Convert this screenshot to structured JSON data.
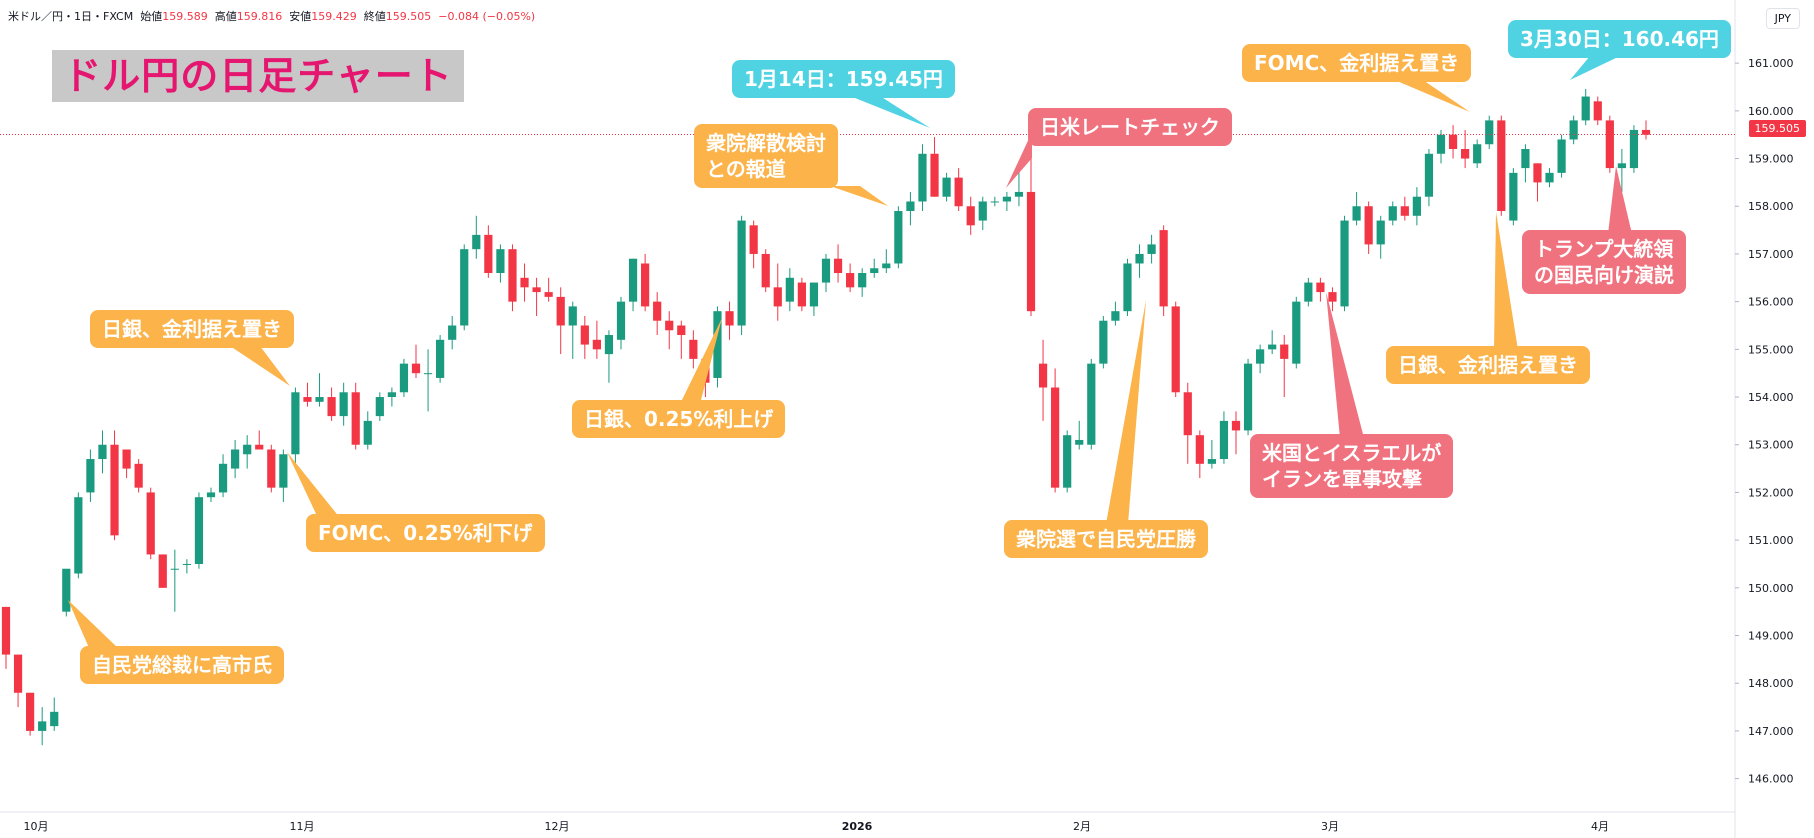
{
  "header": {
    "symbol": "米ドル／円・1日・FXCM",
    "open_label": "始値",
    "open": "159.589",
    "high_label": "高値",
    "high": "159.816",
    "low_label": "安値",
    "low": "159.429",
    "close_label": "終値",
    "close": "159.505",
    "change": "−0.084 (−0.05%)"
  },
  "currency_button": "JPY",
  "title": "ドル円の日足チャート",
  "last_price": "159.505",
  "colors": {
    "up": "#1a9a7e",
    "down": "#f23645",
    "orange": "#fbb34a",
    "red": "#f1727f",
    "cyan": "#4fd2e2",
    "title": "#e5166f"
  },
  "annotations": [
    {
      "id": "a1",
      "text": "自民党総裁に高市氏",
      "style": "orange"
    },
    {
      "id": "a2",
      "text": "日銀、金利据え置き",
      "style": "orange"
    },
    {
      "id": "a3",
      "text": "FOMC、0.25%利下げ",
      "style": "orange"
    },
    {
      "id": "a4",
      "text": "日銀、0.25%利上げ",
      "style": "orange"
    },
    {
      "id": "a5",
      "text": "衆院解散検討\nとの報道",
      "style": "orange"
    },
    {
      "id": "a6",
      "text": "1月14日：159.45円",
      "style": "cyan"
    },
    {
      "id": "a7",
      "text": "日米レートチェック",
      "style": "red"
    },
    {
      "id": "a8",
      "text": "衆院選で自民党圧勝",
      "style": "orange"
    },
    {
      "id": "a9",
      "text": "米国とイスラエルが\nイランを軍事攻撃",
      "style": "red"
    },
    {
      "id": "a10",
      "text": "FOMC、金利据え置き",
      "style": "orange"
    },
    {
      "id": "a11",
      "text": "3月30日：160.46円",
      "style": "cyan"
    },
    {
      "id": "a12",
      "text": "日銀、金利据え置き",
      "style": "orange"
    },
    {
      "id": "a13",
      "text": "トランプ大統領\nの国民向け演説",
      "style": "red"
    }
  ],
  "chart_data": {
    "type": "candlestick",
    "x_tick_labels": [
      "10月",
      "11月",
      "12月",
      "2026",
      "2月",
      "3月",
      "4月"
    ],
    "y_tick_labels": [
      "146.000",
      "147.000",
      "148.000",
      "149.000",
      "150.000",
      "151.000",
      "152.000",
      "153.000",
      "154.000",
      "155.000",
      "156.000",
      "157.000",
      "158.000",
      "159.000",
      "160.000",
      "161.000"
    ],
    "ylim": [
      145.3,
      161.8
    ],
    "current_price": 159.505,
    "candles": [
      {
        "o": 149.6,
        "h": 149.6,
        "l": 148.3,
        "c": 148.6
      },
      {
        "o": 148.6,
        "h": 148.6,
        "l": 147.5,
        "c": 147.8
      },
      {
        "o": 147.8,
        "h": 147.8,
        "l": 146.9,
        "c": 147.0
      },
      {
        "o": 147.0,
        "h": 147.5,
        "l": 146.7,
        "c": 147.2
      },
      {
        "o": 147.1,
        "h": 147.7,
        "l": 147.0,
        "c": 147.4
      },
      {
        "o": 149.5,
        "h": 150.3,
        "l": 149.4,
        "c": 150.4
      },
      {
        "o": 150.3,
        "h": 152.0,
        "l": 150.2,
        "c": 151.9
      },
      {
        "o": 152.0,
        "h": 152.9,
        "l": 151.8,
        "c": 152.7
      },
      {
        "o": 152.7,
        "h": 153.3,
        "l": 152.4,
        "c": 153.0
      },
      {
        "o": 153.0,
        "h": 153.3,
        "l": 151.0,
        "c": 151.1
      },
      {
        "o": 152.9,
        "h": 152.9,
        "l": 152.3,
        "c": 152.5
      },
      {
        "o": 152.6,
        "h": 152.7,
        "l": 152.0,
        "c": 152.1
      },
      {
        "o": 152.0,
        "h": 152.1,
        "l": 150.6,
        "c": 150.7
      },
      {
        "o": 150.7,
        "h": 150.7,
        "l": 150.0,
        "c": 150.0
      },
      {
        "o": 150.4,
        "h": 150.8,
        "l": 149.5,
        "c": 150.4
      },
      {
        "o": 150.5,
        "h": 150.6,
        "l": 150.3,
        "c": 150.5
      },
      {
        "o": 150.5,
        "h": 152.0,
        "l": 150.4,
        "c": 151.9
      },
      {
        "o": 151.9,
        "h": 152.1,
        "l": 151.8,
        "c": 152.0
      },
      {
        "o": 152.0,
        "h": 152.8,
        "l": 151.9,
        "c": 152.6
      },
      {
        "o": 152.5,
        "h": 153.1,
        "l": 152.3,
        "c": 152.9
      },
      {
        "o": 152.8,
        "h": 153.2,
        "l": 152.5,
        "c": 153.0
      },
      {
        "o": 153.0,
        "h": 153.3,
        "l": 152.9,
        "c": 152.9
      },
      {
        "o": 152.9,
        "h": 153.0,
        "l": 152.0,
        "c": 152.1
      },
      {
        "o": 152.1,
        "h": 152.9,
        "l": 151.8,
        "c": 152.8
      },
      {
        "o": 152.8,
        "h": 154.2,
        "l": 152.6,
        "c": 154.1
      },
      {
        "o": 154.0,
        "h": 154.3,
        "l": 153.8,
        "c": 153.9
      },
      {
        "o": 153.9,
        "h": 154.5,
        "l": 153.8,
        "c": 154.0
      },
      {
        "o": 154.0,
        "h": 154.2,
        "l": 153.5,
        "c": 153.6
      },
      {
        "o": 153.6,
        "h": 154.3,
        "l": 153.4,
        "c": 154.1
      },
      {
        "o": 154.1,
        "h": 154.3,
        "l": 152.9,
        "c": 153.0
      },
      {
        "o": 153.0,
        "h": 153.7,
        "l": 152.9,
        "c": 153.5
      },
      {
        "o": 153.6,
        "h": 154.1,
        "l": 153.5,
        "c": 154.0
      },
      {
        "o": 154.0,
        "h": 154.2,
        "l": 153.8,
        "c": 154.1
      },
      {
        "o": 154.1,
        "h": 154.8,
        "l": 154.0,
        "c": 154.7
      },
      {
        "o": 154.7,
        "h": 155.1,
        "l": 154.4,
        "c": 154.5
      },
      {
        "o": 154.5,
        "h": 155.0,
        "l": 153.7,
        "c": 154.5
      },
      {
        "o": 154.4,
        "h": 155.3,
        "l": 154.3,
        "c": 155.2
      },
      {
        "o": 155.2,
        "h": 155.7,
        "l": 155.0,
        "c": 155.5
      },
      {
        "o": 155.5,
        "h": 157.2,
        "l": 155.4,
        "c": 157.1
      },
      {
        "o": 157.1,
        "h": 157.8,
        "l": 156.9,
        "c": 157.4
      },
      {
        "o": 157.4,
        "h": 157.6,
        "l": 156.5,
        "c": 156.6
      },
      {
        "o": 156.6,
        "h": 157.2,
        "l": 156.4,
        "c": 157.1
      },
      {
        "o": 157.1,
        "h": 157.2,
        "l": 155.8,
        "c": 156.0
      },
      {
        "o": 156.5,
        "h": 156.8,
        "l": 156.0,
        "c": 156.3
      },
      {
        "o": 156.3,
        "h": 156.5,
        "l": 155.7,
        "c": 156.2
      },
      {
        "o": 156.2,
        "h": 156.5,
        "l": 156.0,
        "c": 156.1
      },
      {
        "o": 156.1,
        "h": 156.3,
        "l": 154.9,
        "c": 155.5
      },
      {
        "o": 155.5,
        "h": 156.0,
        "l": 154.8,
        "c": 155.9
      },
      {
        "o": 155.5,
        "h": 155.7,
        "l": 154.8,
        "c": 155.1
      },
      {
        "o": 155.2,
        "h": 155.6,
        "l": 154.8,
        "c": 155.0
      },
      {
        "o": 154.9,
        "h": 155.4,
        "l": 154.3,
        "c": 155.3
      },
      {
        "o": 155.2,
        "h": 156.1,
        "l": 155.0,
        "c": 156.0
      },
      {
        "o": 156.0,
        "h": 156.9,
        "l": 155.8,
        "c": 156.9
      },
      {
        "o": 156.8,
        "h": 157.0,
        "l": 155.8,
        "c": 155.9
      },
      {
        "o": 156.0,
        "h": 156.2,
        "l": 155.3,
        "c": 155.6
      },
      {
        "o": 155.6,
        "h": 155.8,
        "l": 155.0,
        "c": 155.4
      },
      {
        "o": 155.5,
        "h": 155.6,
        "l": 154.8,
        "c": 155.3
      },
      {
        "o": 155.2,
        "h": 155.4,
        "l": 154.6,
        "c": 154.8
      },
      {
        "o": 154.8,
        "h": 154.9,
        "l": 154.0,
        "c": 154.3
      },
      {
        "o": 154.4,
        "h": 155.9,
        "l": 154.2,
        "c": 155.8
      },
      {
        "o": 155.8,
        "h": 156.0,
        "l": 155.2,
        "c": 155.5
      },
      {
        "o": 155.5,
        "h": 157.8,
        "l": 155.3,
        "c": 157.7
      },
      {
        "o": 157.6,
        "h": 157.7,
        "l": 156.7,
        "c": 157.0
      },
      {
        "o": 157.0,
        "h": 157.1,
        "l": 156.2,
        "c": 156.3
      },
      {
        "o": 156.3,
        "h": 156.8,
        "l": 155.6,
        "c": 155.9
      },
      {
        "o": 156.0,
        "h": 156.7,
        "l": 155.8,
        "c": 156.5
      },
      {
        "o": 156.4,
        "h": 156.5,
        "l": 155.8,
        "c": 155.9
      },
      {
        "o": 155.9,
        "h": 156.4,
        "l": 155.7,
        "c": 156.4
      },
      {
        "o": 156.4,
        "h": 157.0,
        "l": 156.2,
        "c": 156.9
      },
      {
        "o": 156.9,
        "h": 157.2,
        "l": 156.4,
        "c": 156.6
      },
      {
        "o": 156.6,
        "h": 156.8,
        "l": 156.2,
        "c": 156.3
      },
      {
        "o": 156.3,
        "h": 156.7,
        "l": 156.1,
        "c": 156.6
      },
      {
        "o": 156.6,
        "h": 156.9,
        "l": 156.5,
        "c": 156.7
      },
      {
        "o": 156.7,
        "h": 157.1,
        "l": 156.6,
        "c": 156.8
      },
      {
        "o": 156.8,
        "h": 158.0,
        "l": 156.7,
        "c": 157.9
      },
      {
        "o": 157.9,
        "h": 158.3,
        "l": 157.6,
        "c": 158.1
      },
      {
        "o": 158.1,
        "h": 159.3,
        "l": 157.9,
        "c": 159.1
      },
      {
        "o": 159.1,
        "h": 159.45,
        "l": 158.2,
        "c": 158.2
      },
      {
        "o": 158.2,
        "h": 158.7,
        "l": 158.1,
        "c": 158.6
      },
      {
        "o": 158.6,
        "h": 158.8,
        "l": 157.9,
        "c": 158.0
      },
      {
        "o": 158.0,
        "h": 158.2,
        "l": 157.4,
        "c": 157.6
      },
      {
        "o": 157.7,
        "h": 158.2,
        "l": 157.5,
        "c": 158.1
      },
      {
        "o": 158.1,
        "h": 158.2,
        "l": 158.0,
        "c": 158.1
      },
      {
        "o": 158.1,
        "h": 158.3,
        "l": 157.9,
        "c": 158.2
      },
      {
        "o": 158.2,
        "h": 158.9,
        "l": 158.0,
        "c": 158.3
      },
      {
        "o": 158.3,
        "h": 159.3,
        "l": 155.7,
        "c": 155.8
      },
      {
        "o": 154.7,
        "h": 155.2,
        "l": 153.5,
        "c": 154.2
      },
      {
        "o": 154.2,
        "h": 154.6,
        "l": 152.0,
        "c": 152.1
      },
      {
        "o": 152.1,
        "h": 153.3,
        "l": 152.0,
        "c": 153.2
      },
      {
        "o": 153.0,
        "h": 153.5,
        "l": 152.9,
        "c": 153.1
      },
      {
        "o": 153.0,
        "h": 154.8,
        "l": 152.9,
        "c": 154.7
      },
      {
        "o": 154.7,
        "h": 155.7,
        "l": 154.6,
        "c": 155.6
      },
      {
        "o": 155.6,
        "h": 156.0,
        "l": 155.5,
        "c": 155.8
      },
      {
        "o": 155.8,
        "h": 156.9,
        "l": 155.7,
        "c": 156.8
      },
      {
        "o": 156.8,
        "h": 157.2,
        "l": 156.5,
        "c": 157.0
      },
      {
        "o": 157.0,
        "h": 157.4,
        "l": 156.8,
        "c": 157.2
      },
      {
        "o": 157.5,
        "h": 157.6,
        "l": 155.7,
        "c": 155.9
      },
      {
        "o": 155.9,
        "h": 156.0,
        "l": 154.0,
        "c": 154.1
      },
      {
        "o": 154.1,
        "h": 154.3,
        "l": 152.6,
        "c": 153.2
      },
      {
        "o": 153.2,
        "h": 153.3,
        "l": 152.3,
        "c": 152.6
      },
      {
        "o": 152.6,
        "h": 153.1,
        "l": 152.5,
        "c": 152.7
      },
      {
        "o": 152.7,
        "h": 153.7,
        "l": 152.6,
        "c": 153.5
      },
      {
        "o": 153.5,
        "h": 153.7,
        "l": 152.8,
        "c": 153.3
      },
      {
        "o": 153.3,
        "h": 154.8,
        "l": 153.2,
        "c": 154.7
      },
      {
        "o": 154.7,
        "h": 155.1,
        "l": 154.5,
        "c": 155.0
      },
      {
        "o": 155.0,
        "h": 155.4,
        "l": 154.9,
        "c": 155.1
      },
      {
        "o": 155.1,
        "h": 155.3,
        "l": 154.0,
        "c": 154.8
      },
      {
        "o": 154.7,
        "h": 156.1,
        "l": 154.6,
        "c": 156.0
      },
      {
        "o": 156.0,
        "h": 156.5,
        "l": 155.9,
        "c": 156.4
      },
      {
        "o": 156.4,
        "h": 156.5,
        "l": 156.0,
        "c": 156.2
      },
      {
        "o": 156.2,
        "h": 156.3,
        "l": 155.8,
        "c": 156.0
      },
      {
        "o": 155.9,
        "h": 157.8,
        "l": 155.8,
        "c": 157.7
      },
      {
        "o": 157.7,
        "h": 158.3,
        "l": 157.6,
        "c": 158.0
      },
      {
        "o": 158.0,
        "h": 158.1,
        "l": 157.0,
        "c": 157.2
      },
      {
        "o": 157.2,
        "h": 157.8,
        "l": 156.9,
        "c": 157.7
      },
      {
        "o": 157.7,
        "h": 158.1,
        "l": 157.6,
        "c": 158.0
      },
      {
        "o": 158.0,
        "h": 158.2,
        "l": 157.7,
        "c": 157.8
      },
      {
        "o": 157.8,
        "h": 158.4,
        "l": 157.6,
        "c": 158.2
      },
      {
        "o": 158.2,
        "h": 159.2,
        "l": 158.0,
        "c": 159.1
      },
      {
        "o": 159.1,
        "h": 159.6,
        "l": 158.9,
        "c": 159.5
      },
      {
        "o": 159.5,
        "h": 159.7,
        "l": 159.0,
        "c": 159.2
      },
      {
        "o": 159.2,
        "h": 159.6,
        "l": 158.8,
        "c": 159.0
      },
      {
        "o": 158.9,
        "h": 159.4,
        "l": 158.8,
        "c": 159.3
      },
      {
        "o": 159.3,
        "h": 159.9,
        "l": 159.2,
        "c": 159.8
      },
      {
        "o": 159.8,
        "h": 159.9,
        "l": 157.8,
        "c": 157.9
      },
      {
        "o": 157.7,
        "h": 158.8,
        "l": 157.6,
        "c": 158.7
      },
      {
        "o": 158.8,
        "h": 159.3,
        "l": 158.5,
        "c": 159.2
      },
      {
        "o": 158.9,
        "h": 158.9,
        "l": 158.1,
        "c": 158.5
      },
      {
        "o": 158.5,
        "h": 158.8,
        "l": 158.4,
        "c": 158.7
      },
      {
        "o": 158.7,
        "h": 159.5,
        "l": 158.6,
        "c": 159.4
      },
      {
        "o": 159.4,
        "h": 159.9,
        "l": 159.3,
        "c": 159.8
      },
      {
        "o": 159.8,
        "h": 160.46,
        "l": 159.7,
        "c": 160.3
      },
      {
        "o": 160.2,
        "h": 160.3,
        "l": 159.7,
        "c": 159.8
      },
      {
        "o": 159.8,
        "h": 159.9,
        "l": 158.7,
        "c": 158.8
      },
      {
        "o": 158.8,
        "h": 159.2,
        "l": 158.3,
        "c": 158.9
      },
      {
        "o": 158.8,
        "h": 159.7,
        "l": 158.7,
        "c": 159.6
      },
      {
        "o": 159.6,
        "h": 159.8,
        "l": 159.4,
        "c": 159.5
      }
    ]
  }
}
